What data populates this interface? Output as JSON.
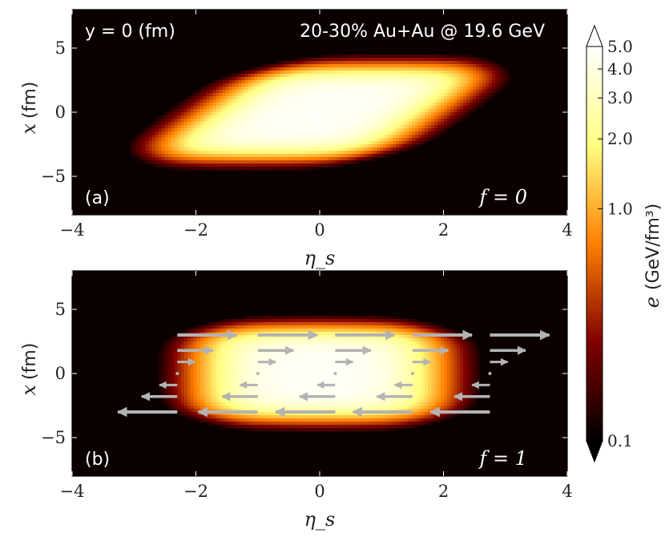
{
  "chart_data": [
    {
      "type": "heatmap",
      "panel_label": "(a)",
      "slice_label": "y = 0 (fm)",
      "system_label": "20-30% Au+Au @ 19.6 GeV",
      "param_label": "f = 0",
      "xlabel": "η_s",
      "ylabel_var": "x",
      "ylabel_unit": "(fm)",
      "xlim": [
        -4,
        4
      ],
      "ylim": [
        -8,
        8
      ],
      "xticks": [
        "−4",
        "−2",
        "0",
        "2",
        "4"
      ],
      "yticks": [
        "−5",
        "0",
        "5"
      ],
      "xtick_values": [
        -4,
        -2,
        0,
        2,
        4
      ],
      "ytick_values": [
        -5,
        0,
        5
      ],
      "profile": {
        "shape": "tilted",
        "core_halfwidth_eta": 1.45,
        "edge_sigma_eta": 0.28,
        "halfwidth_x": 2.9,
        "edge_sigma_x": 0.45,
        "tilt_eta_per_fm": 0.28,
        "peak_value": 4.8
      }
    },
    {
      "type": "heatmap",
      "panel_label": "(b)",
      "param_label": "f = 1",
      "xlabel": "η_s",
      "ylabel_var": "x",
      "ylabel_unit": "(fm)",
      "xlim": [
        -4,
        4
      ],
      "ylim": [
        -8,
        8
      ],
      "xticks": [
        "−4",
        "−2",
        "0",
        "2",
        "4"
      ],
      "yticks": [
        "−5",
        "0",
        "5"
      ],
      "xtick_values": [
        -4,
        -2,
        0,
        2,
        4
      ],
      "ytick_values": [
        -5,
        0,
        5
      ],
      "profile": {
        "shape": "rectangular",
        "core_halfwidth_eta": 1.5,
        "edge_sigma_eta": 0.3,
        "halfwidth_x": 2.9,
        "edge_sigma_x": 0.45,
        "tilt_eta_per_fm": 0,
        "peak_value": 4.8
      },
      "velocity_field": {
        "description": "arrows: shear flow along eta_s",
        "columns_eta": [
          -2.3,
          -1.0,
          0.25,
          1.5,
          2.75
        ],
        "rows_x": [
          3.0,
          1.8,
          0.9,
          0.0,
          -0.9,
          -1.8,
          -3.0
        ],
        "velocity_per_fm": 0.32,
        "color": "#b3b3b3"
      }
    }
  ],
  "colorbar": {
    "label_var": "e",
    "label_unit": "(GeV/fm³)",
    "scale": "log",
    "min": 0.1,
    "max": 5.0,
    "ticks": [
      {
        "value": 0.1,
        "label": "0.1"
      },
      {
        "value": 1.0,
        "label": "1.0"
      },
      {
        "value": 2.0,
        "label": "2.0"
      },
      {
        "value": 3.0,
        "label": "3.0"
      },
      {
        "value": 4.0,
        "label": "4.0"
      },
      {
        "value": 5.0,
        "label": "5.0"
      }
    ],
    "colormap": "afmhot",
    "extend": "both"
  }
}
